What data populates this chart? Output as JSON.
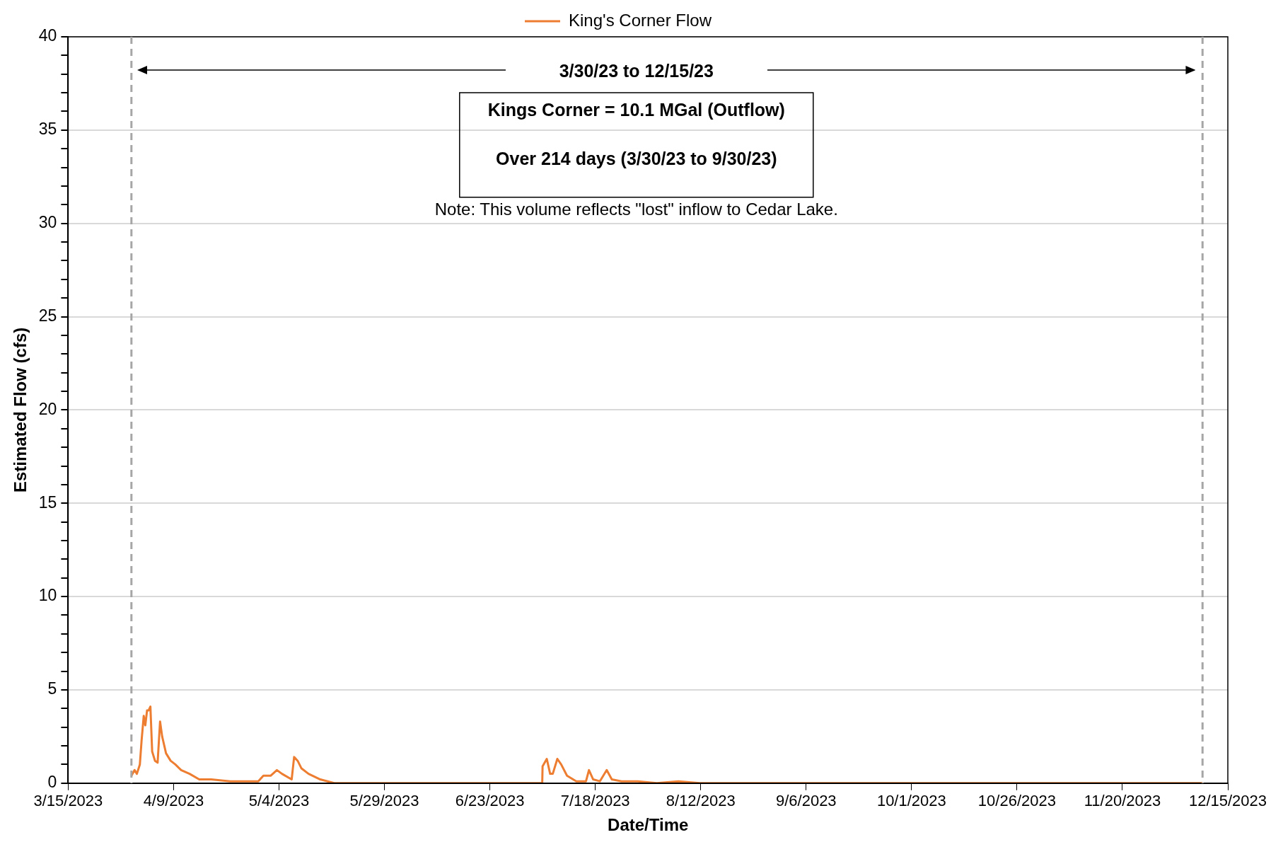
{
  "chart_data": {
    "type": "line",
    "xlabel": "Date/Time",
    "ylabel": "Estimated Flow (cfs)",
    "series": [
      {
        "name": "King's Corner Flow",
        "color": "#ed7d31",
        "x": [
          "2023-03-30T00:00",
          "2023-03-30T18:00",
          "2023-03-31T07:00",
          "2023-04-01T00:00",
          "2023-04-01T10:00",
          "2023-04-01T22:00",
          "2023-04-02T07:00",
          "2023-04-02T17:00",
          "2023-04-03T02:00",
          "2023-04-03T12:00",
          "2023-04-03T22:00",
          "2023-04-04T14:00",
          "2023-04-05T05:00",
          "2023-04-05T19:00",
          "2023-04-06T07:00",
          "2023-04-07T05:00",
          "2023-04-08T07:00",
          "2023-04-09T10:00",
          "2023-04-10T19:00",
          "2023-04-12T19:00",
          "2023-04-15T02:00",
          "2023-04-17T22:00",
          "2023-04-22T10:00",
          "2023-04-26T07:00",
          "2023-04-29T02:00",
          "2023-04-30T07:00",
          "2023-05-02T00:00",
          "2023-05-03T12:00",
          "2023-05-04T17:00",
          "2023-05-07T00:00",
          "2023-05-07T14:00",
          "2023-05-08T10:00",
          "2023-05-09T07:00",
          "2023-05-11T00:00",
          "2023-05-13T19:00",
          "2023-05-17T02:00",
          "2023-05-24T00:00",
          "2023-07-05T10:00",
          "2023-07-05T12:00",
          "2023-07-06T12:00",
          "2023-07-07T07:00",
          "2023-07-07T22:00",
          "2023-07-09T00:00",
          "2023-07-09T22:00",
          "2023-07-11T07:00",
          "2023-07-13T12:00",
          "2023-07-15T19:00",
          "2023-07-16T12:00",
          "2023-07-17T12:00",
          "2023-07-19T02:00",
          "2023-07-20T17:00",
          "2023-07-21T22:00",
          "2023-07-24T05:00",
          "2023-07-28T02:00",
          "2023-08-01T14:00",
          "2023-08-06T17:00",
          "2023-08-11T19:00",
          "2023-12-09T00:00"
        ],
        "values": [
          0.4,
          0.7,
          0.5,
          1.0,
          2.3,
          3.6,
          3.1,
          3.9,
          3.9,
          4.1,
          1.7,
          1.2,
          1.1,
          3.3,
          2.5,
          1.6,
          1.2,
          1.0,
          0.7,
          0.5,
          0.2,
          0.2,
          0.1,
          0.1,
          0.1,
          0.4,
          0.4,
          0.7,
          0.5,
          0.2,
          1.4,
          1.2,
          0.8,
          0.5,
          0.2,
          0,
          0,
          0,
          0.9,
          1.3,
          0.5,
          0.5,
          1.3,
          1.0,
          0.4,
          0.1,
          0.1,
          0.7,
          0.2,
          0.1,
          0.7,
          0.2,
          0.1,
          0.1,
          0,
          0.1,
          0,
          0
        ]
      }
    ],
    "xlim": [
      "2023-03-15",
      "2023-12-15"
    ],
    "xticks": [
      {
        "value": "2023-03-15",
        "label": "3/15/2023"
      },
      {
        "value": "2023-04-09",
        "label": "4/9/2023"
      },
      {
        "value": "2023-05-04",
        "label": "5/4/2023"
      },
      {
        "value": "2023-05-29",
        "label": "5/29/2023"
      },
      {
        "value": "2023-06-23",
        "label": "6/23/2023"
      },
      {
        "value": "2023-07-18",
        "label": "7/18/2023"
      },
      {
        "value": "2023-08-12",
        "label": "8/12/2023"
      },
      {
        "value": "2023-09-06",
        "label": "9/6/2023"
      },
      {
        "value": "2023-10-01",
        "label": "10/1/2023"
      },
      {
        "value": "2023-10-26",
        "label": "10/26/2023"
      },
      {
        "value": "2023-11-20",
        "label": "11/20/2023"
      },
      {
        "value": "2023-12-15",
        "label": "12/15/2023"
      }
    ],
    "ylim": [
      0,
      40
    ],
    "yticks": [
      0,
      {
        "value": 1,
        "label": null
      },
      {
        "value": 2,
        "label": null
      },
      {
        "value": 3,
        "label": null
      },
      {
        "value": 4,
        "label": null
      },
      5,
      {
        "value": 6,
        "label": null
      },
      {
        "value": 7,
        "label": null
      },
      {
        "value": 8,
        "label": null
      },
      {
        "value": 9,
        "label": null
      },
      10,
      {
        "value": 11,
        "label": null
      },
      {
        "value": 12,
        "label": null
      },
      {
        "value": 13,
        "label": null
      },
      {
        "value": 14,
        "label": null
      },
      15,
      {
        "value": 16,
        "label": null
      },
      {
        "value": 17,
        "label": null
      },
      {
        "value": 18,
        "label": null
      },
      {
        "value": 19,
        "label": null
      },
      20,
      {
        "value": 21,
        "label": null
      },
      {
        "value": 22,
        "label": null
      },
      {
        "value": 23,
        "label": null
      },
      {
        "value": 24,
        "label": null
      },
      25,
      {
        "value": 26,
        "label": null
      },
      {
        "value": 27,
        "label": null
      },
      {
        "value": 28,
        "label": null
      },
      {
        "value": 29,
        "label": null
      },
      30,
      {
        "value": 31,
        "label": null
      },
      {
        "value": 32,
        "label": null
      },
      {
        "value": 33,
        "label": null
      },
      {
        "value": 34,
        "label": null
      },
      35,
      {
        "value": 36,
        "label": null
      },
      {
        "value": 37,
        "label": null
      },
      {
        "value": 38,
        "label": null
      },
      {
        "value": 39,
        "label": null
      },
      40
    ],
    "ref_lines": [
      {
        "axis": "x",
        "value": "2023-03-30",
        "color": "#a6a6a6",
        "line_style": "dashed"
      },
      {
        "axis": "x",
        "value": "2023-12-09",
        "color": "#a6a6a6",
        "line_style": "dashed"
      }
    ],
    "annotations": [
      "3/30/23 to 12/15/23",
      "Kings Corner = 10.1 MGal (Outflow)",
      "Over 214 days (3/30/23 to 9/30/23)",
      "Note: This volume reflects \"lost\" inflow to Cedar Lake."
    ],
    "grid": "y",
    "legend": "top",
    "marker": "none",
    "line_style": "solid"
  }
}
